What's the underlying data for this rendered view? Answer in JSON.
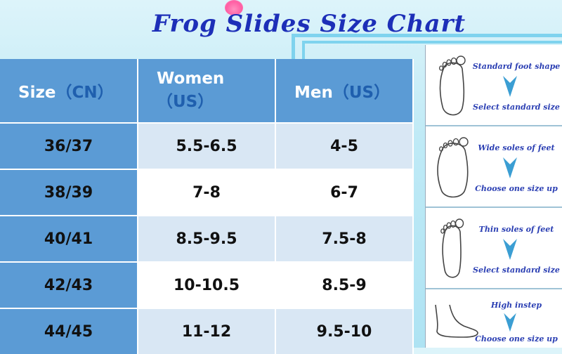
{
  "title": "Frog Slides Size Chart",
  "table": {
    "headers": [
      {
        "label": "Size",
        "unit": "（CN）"
      },
      {
        "label": "Women",
        "unit": "（US）"
      },
      {
        "label": "Men",
        "unit": "（US）"
      }
    ],
    "rows": [
      [
        "36/37",
        "5.5-6.5",
        "4-5"
      ],
      [
        "38/39",
        "7-8",
        "6-7"
      ],
      [
        "40/41",
        "8.5-9.5",
        "7.5-8"
      ],
      [
        "42/43",
        "10-10.5",
        "8.5-9"
      ],
      [
        "44/45",
        "11-12",
        "9.5-10"
      ]
    ]
  },
  "guide": [
    {
      "top": "Standard foot shape",
      "bottom": "Select standard size"
    },
    {
      "top": "Wide soles of feet",
      "bottom": "Choose one size up"
    },
    {
      "top": "Thin soles of feet",
      "bottom": "Select standard size"
    },
    {
      "top": "High instep",
      "bottom": "Choose one size up"
    }
  ],
  "colors": {
    "header": "#5b9bd5",
    "title": "#1d2fb8",
    "row_alt": "#d9e7f4"
  }
}
